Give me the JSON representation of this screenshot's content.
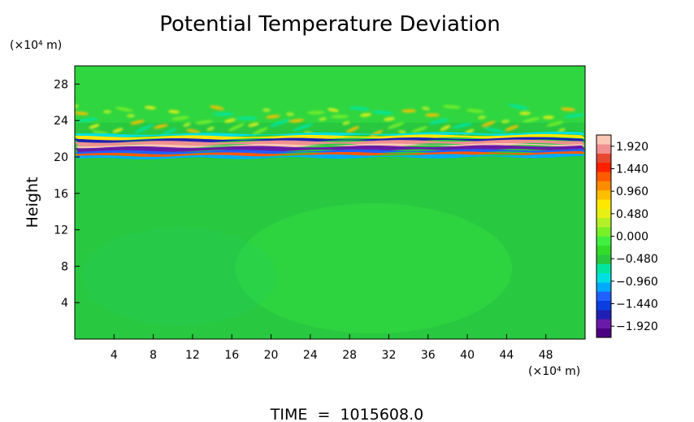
{
  "chart_data": {
    "type": "heatmap",
    "title": "Potential Temperature Deviation",
    "ylabel": "Height",
    "yunit": "(×10⁴ m)",
    "xunit": "(×10⁴ m)",
    "xlim": [
      0,
      52
    ],
    "ylim": [
      0,
      30
    ],
    "xticks": [
      4,
      8,
      12,
      16,
      20,
      24,
      28,
      32,
      36,
      40,
      44,
      48
    ],
    "yticks": [
      4,
      8,
      12,
      16,
      20,
      24,
      28
    ],
    "colorbar": {
      "min": -2.16,
      "max": 2.16,
      "labels": [
        "1.920",
        "1.440",
        "0.960",
        "0.480",
        "0.000",
        "−0.480",
        "−0.960",
        "−1.440",
        "−1.920"
      ],
      "colors": [
        "#4b0082",
        "#6a1aa8",
        "#1f1fb4",
        "#0a3ee0",
        "#2060ff",
        "#00aaff",
        "#00e0e0",
        "#00e6a0",
        "#28c840",
        "#32dc28",
        "#40f040",
        "#78f028",
        "#b4f028",
        "#e6f014",
        "#ffe800",
        "#ffbe00",
        "#ff8c00",
        "#ff5a00",
        "#ff2000",
        "#e84830",
        "#f09090",
        "#fac8b4"
      ]
    },
    "background_value": 0.0,
    "layer": {
      "y_range": [
        19.8,
        22.5
      ],
      "note_values": [
        -1.92,
        1.92
      ]
    },
    "footer": "TIME  =  1015608.0"
  }
}
